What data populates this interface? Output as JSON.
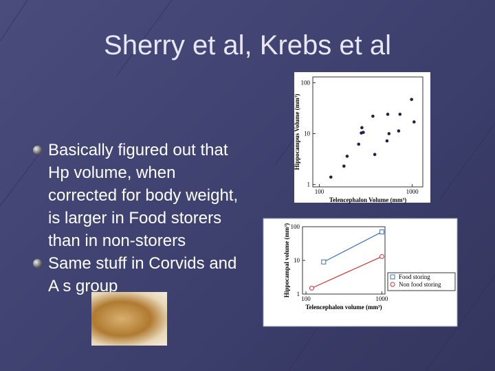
{
  "title": "Sherry et al, Krebs et al",
  "bullets": [
    "Basically figured out that Hp volume, when corrected for body weight, is larger in Food storers than in non-storers",
    "Same stuff in Corvids and A s group"
  ],
  "chart_data": [
    {
      "type": "scatter",
      "xlabel": "Telencephalon Volume (mm³)",
      "ylabel": "Hippocampus Volume (mm³)",
      "log": true,
      "xlim": [
        85,
        1300
      ],
      "ylim": [
        0.9,
        130
      ],
      "xticks": [
        100,
        1000
      ],
      "yticks": [
        1,
        10,
        100
      ],
      "series": [
        {
          "color": "#222244",
          "x": [
            133,
            184,
            199,
            265,
            283,
            287,
            297,
            377,
            395,
            535,
            545,
            562,
            714,
            738,
            984,
            1047
          ],
          "values": [
            1.4,
            2.3,
            3.6,
            6.2,
            10.3,
            13.1,
            10.6,
            22,
            3.9,
            7.2,
            24,
            10,
            11.3,
            24,
            47,
            17
          ]
        }
      ]
    },
    {
      "type": "line",
      "xlabel": "Telencephalon volume (mm³)",
      "ylabel": "Hippocampal volume (mm³)",
      "log": true,
      "xlim": [
        90,
        1100
      ],
      "ylim": [
        1,
        100
      ],
      "xticks": [
        100,
        1000
      ],
      "yticks": [
        1,
        10,
        100
      ],
      "series": [
        {
          "name": "Food storing",
          "color": "#3a6fc4",
          "x": [
            171,
            1000
          ],
          "values": [
            9,
            70
          ]
        },
        {
          "name": "Non food storing",
          "color": "#d03030",
          "x": [
            119,
            1000
          ],
          "values": [
            1.5,
            13
          ]
        }
      ]
    }
  ]
}
